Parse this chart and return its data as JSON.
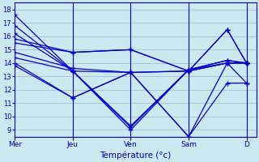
{
  "xlabel": "Température (°c)",
  "bg_color": "#cce8f0",
  "line_color": "#0000cc",
  "grid_color": "#99bbcc",
  "ylim": [
    8.5,
    18.5
  ],
  "yticks": [
    9,
    10,
    11,
    12,
    13,
    14,
    15,
    16,
    17,
    18
  ],
  "day_labels": [
    "Mer",
    "Jeu",
    "Ven",
    "Sam",
    "D"
  ],
  "day_positions": [
    0,
    24,
    48,
    72,
    96
  ],
  "total_hours": 100,
  "series": [
    [
      17.6,
      13.4,
      9.0,
      13.5,
      14.2,
      14.0
    ],
    [
      16.8,
      13.4,
      9.2,
      13.5,
      14.2,
      14.0
    ],
    [
      16.2,
      13.4,
      9.3,
      13.5,
      14.0,
      14.0
    ],
    [
      15.8,
      14.8,
      15.0,
      13.4,
      14.0,
      14.0
    ],
    [
      15.5,
      14.8,
      15.0,
      13.4,
      14.0,
      14.0
    ],
    [
      14.8,
      13.6,
      13.3,
      13.4,
      16.5,
      14.0
    ],
    [
      14.4,
      13.4,
      13.3,
      13.4,
      16.5,
      14.0
    ],
    [
      14.0,
      11.4,
      13.3,
      8.5,
      14.0,
      12.5
    ],
    [
      13.8,
      11.4,
      13.3,
      8.5,
      12.5,
      12.5
    ]
  ],
  "x_positions": [
    0,
    24,
    48,
    72,
    88,
    96
  ]
}
